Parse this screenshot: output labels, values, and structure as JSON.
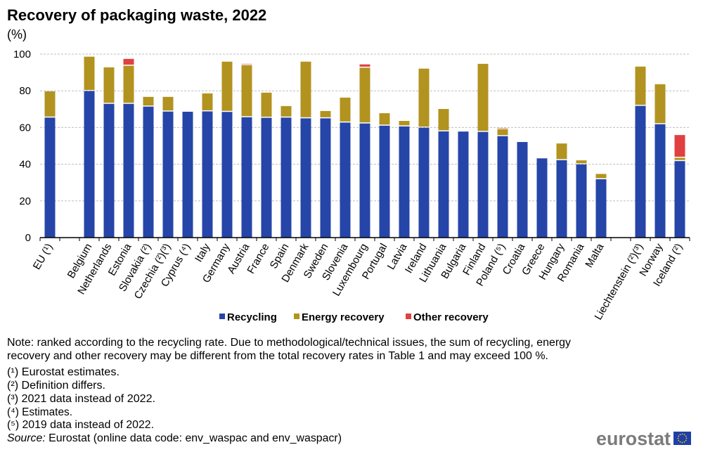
{
  "chart_data": {
    "type": "bar",
    "stacked": true,
    "title": "Recovery of packaging waste, 2022",
    "ylabel": "(%)",
    "ylim": [
      0,
      100
    ],
    "yticks": [
      0,
      20,
      40,
      60,
      80,
      100
    ],
    "grid": true,
    "legend_position": "bottom",
    "categories": [
      "EU (¹)",
      "",
      "Belgium",
      "Netherlands",
      "Estonia",
      "Slovakia (²)",
      "Czechia (²)(³)",
      "Cyprus (⁴)",
      "Italy",
      "Germany",
      "Austria",
      "France",
      "Spain",
      "Denmark",
      "Sweden",
      "Slovenia",
      "Luxembourg",
      "Portugal",
      "Latvia",
      "Ireland",
      "Lithuania",
      "Bulgaria",
      "Finland",
      "Poland (⁵)",
      "Croatia",
      "Greece",
      "Hungary",
      "Romania",
      "Malta",
      "",
      "Liechtenstein (²)(³)",
      "Norway",
      "Iceland (²)"
    ],
    "series": [
      {
        "name": "Recycling",
        "color": "#2645a8",
        "values": [
          65.4,
          null,
          79.9,
          72.9,
          72.9,
          71.4,
          68.7,
          68.6,
          68.8,
          68.5,
          65.6,
          65.3,
          65.4,
          65.0,
          65.0,
          62.7,
          62.2,
          61.0,
          60.6,
          59.9,
          57.9,
          57.8,
          57.6,
          55.3,
          52.1,
          43.2,
          42.2,
          39.9,
          31.8,
          null,
          71.8,
          61.8,
          41.7
        ]
      },
      {
        "name": "Energy recovery",
        "color": "#b29320",
        "values": [
          14.3,
          null,
          18.7,
          19.9,
          20.8,
          5.3,
          8.0,
          0,
          9.8,
          27.4,
          28.4,
          13.7,
          6.3,
          30.9,
          4.0,
          13.6,
          30.4,
          6.8,
          3.0,
          32.2,
          12.2,
          0,
          37.1,
          3.8,
          0,
          0,
          9.1,
          2.2,
          2.9,
          null,
          21.4,
          21.8,
          1.8
        ]
      },
      {
        "name": "Other recovery",
        "color": "#e04040",
        "values": [
          0,
          null,
          0,
          0,
          3.7,
          0,
          0,
          0,
          0,
          0,
          0.7,
          0,
          0,
          0,
          0,
          0,
          1.8,
          0,
          0,
          0,
          0,
          0,
          0,
          0.6,
          0,
          0,
          0,
          0,
          0,
          null,
          0,
          0,
          12.4
        ]
      }
    ]
  },
  "notes": [
    "Note: ranked according to the recycling rate. Due to methodological/technical  issues, the sum of recycling, energy",
    "recovery and other recovery may be different from the total recovery rates in Table 1 and may exceed 100 %.",
    "(¹) Eurostat estimates.",
    "(²) Definition differs.",
    "(³) 2021 data instead of 2022.",
    "(⁴) Estimates.",
    "(⁵) 2019 data instead of 2022."
  ],
  "source": {
    "label": "Source:",
    "text": " Eurostat (online data code: env_waspac and env_waspacr)"
  },
  "logo": {
    "text": "eurostat",
    "flag_color": "#1f3fa8",
    "star_color": "#f3d400"
  }
}
